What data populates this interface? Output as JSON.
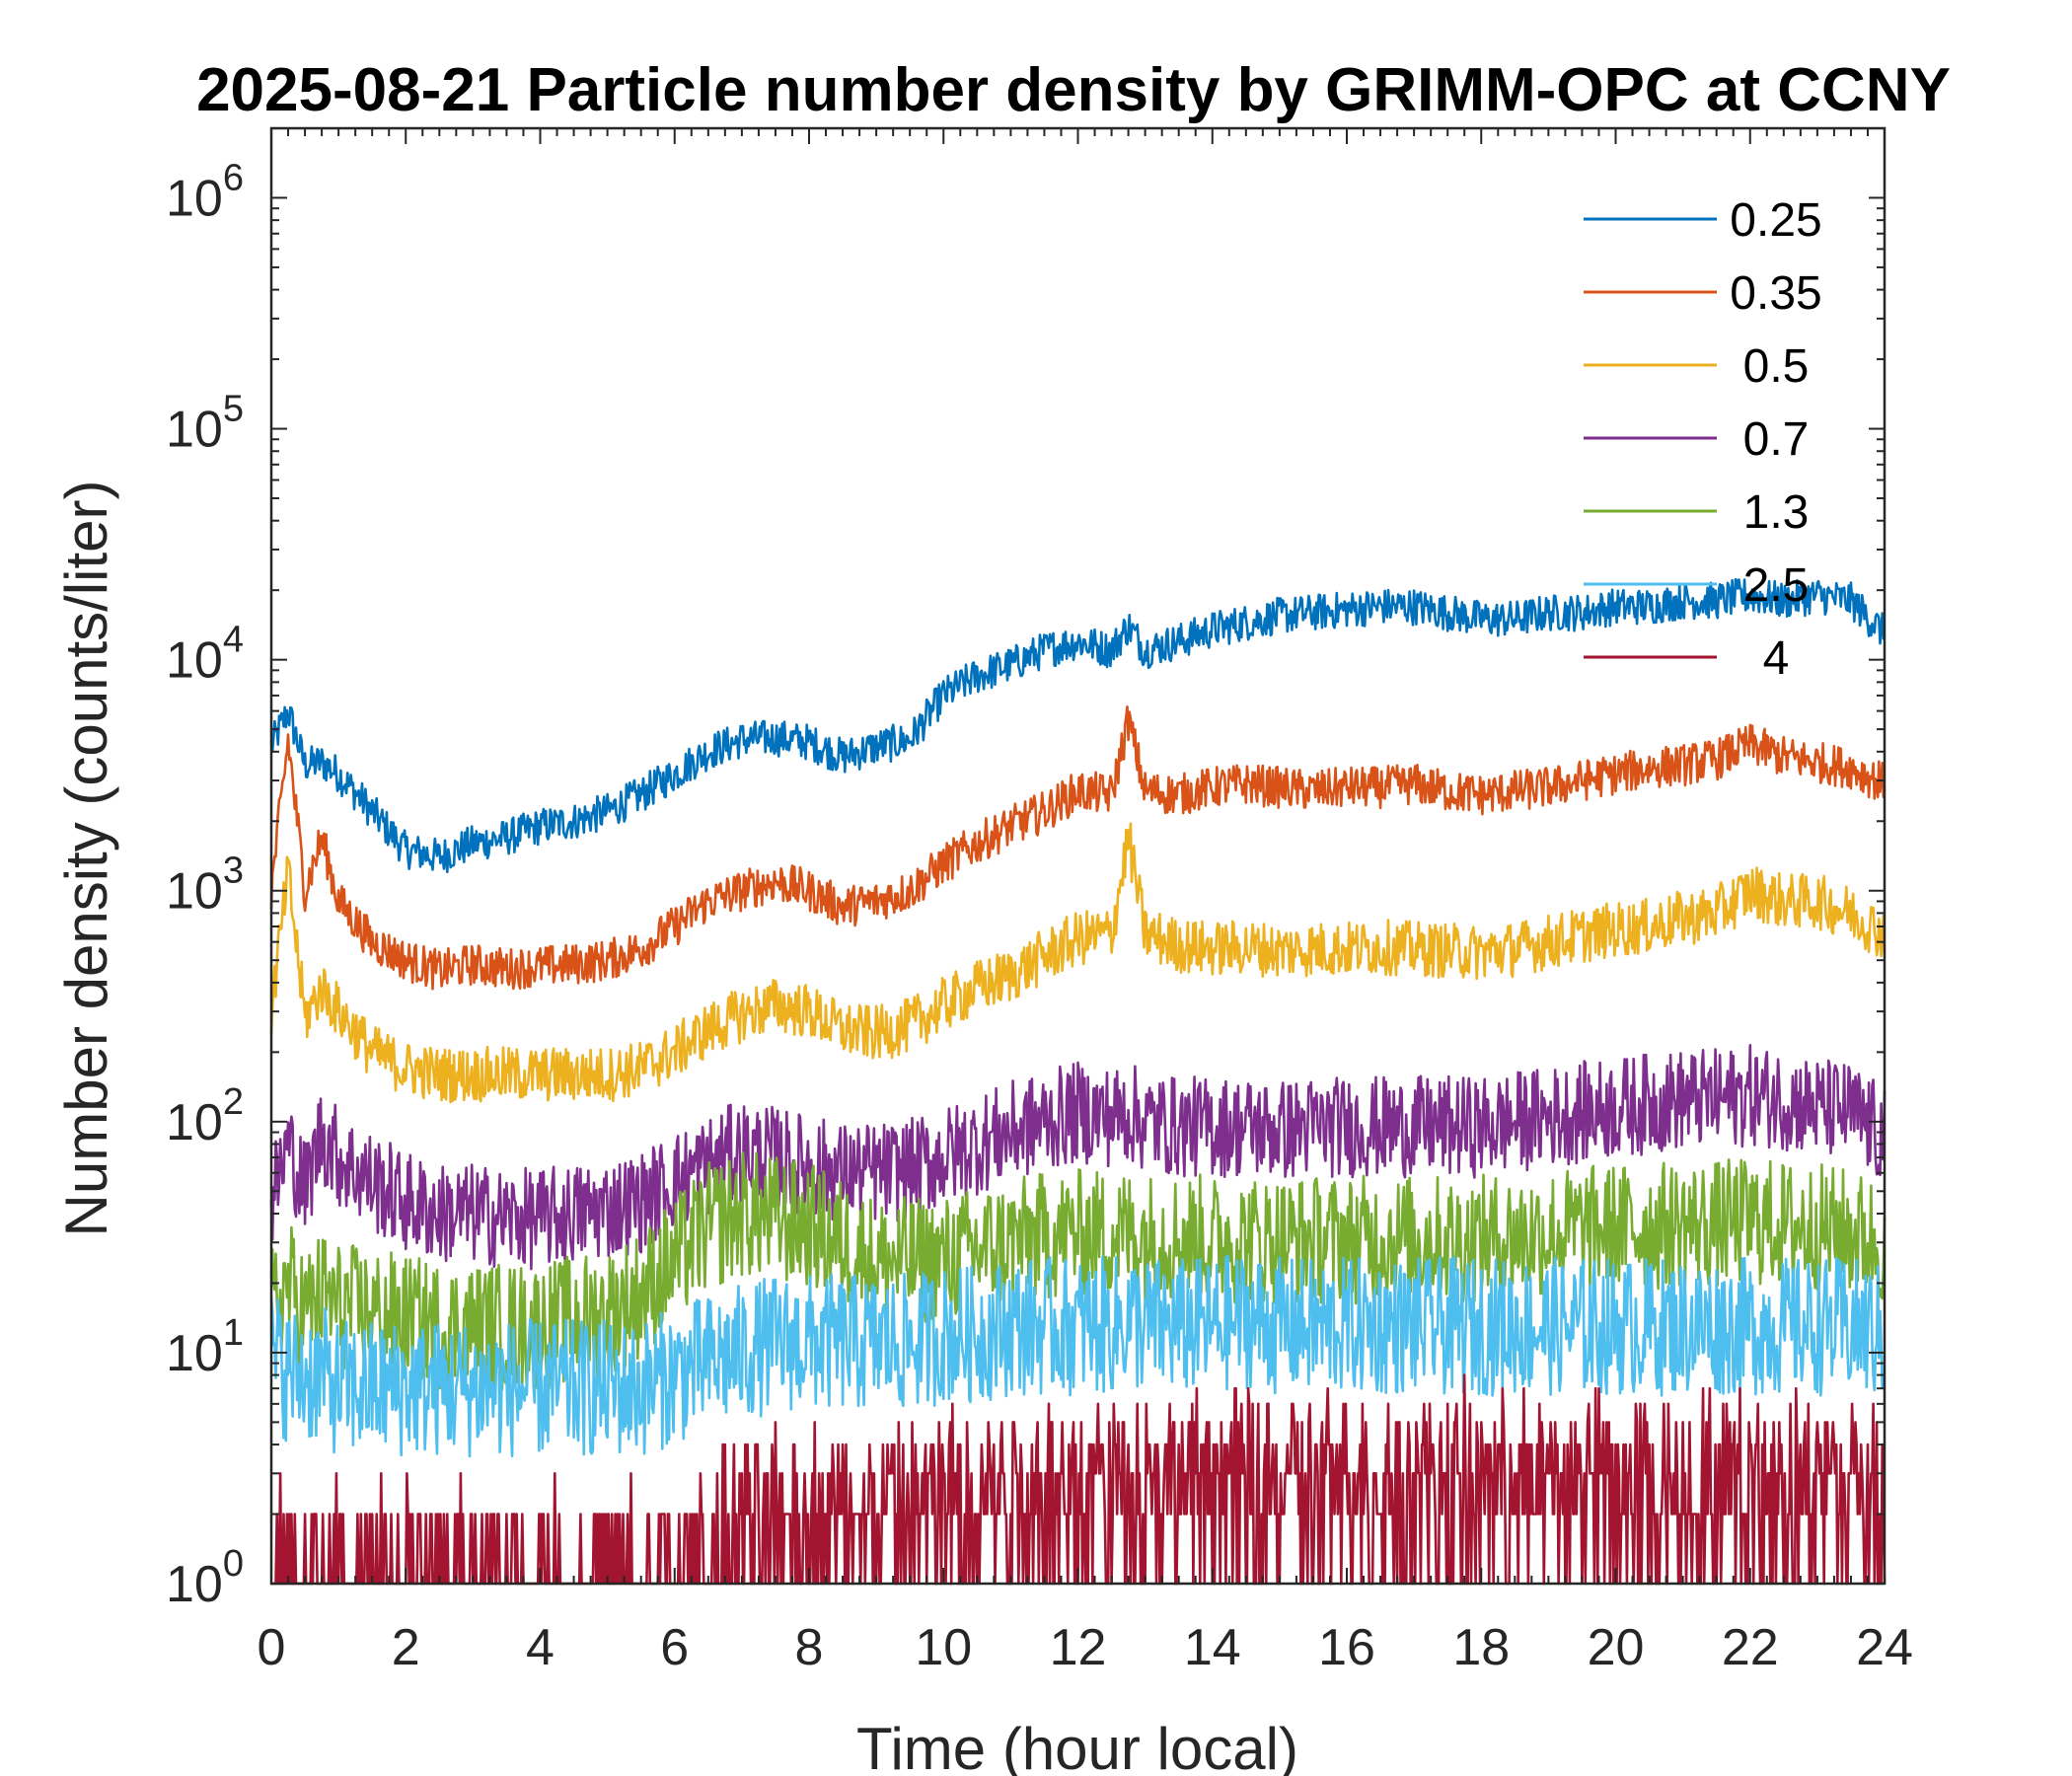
{
  "chart_data": {
    "type": "line",
    "title": "2025-08-21 Particle number density by GRIMM-OPC at CCNY",
    "xlabel": "Time (hour local)",
    "ylabel": "Number density (counts/liter)",
    "x_scale": "linear",
    "y_scale": "log",
    "xlim": [
      0,
      24
    ],
    "ylim": [
      1,
      2000000
    ],
    "x_ticks": [
      0,
      2,
      4,
      6,
      8,
      10,
      12,
      14,
      16,
      18,
      20,
      22,
      24
    ],
    "x_tick_labels": [
      "0",
      "2",
      "4",
      "6",
      "8",
      "10",
      "12",
      "14",
      "16",
      "18",
      "20",
      "22",
      "24"
    ],
    "y_ticks": [
      1,
      10,
      100,
      1000,
      10000,
      100000,
      1000000
    ],
    "y_tick_labels": [
      {
        "base": "10",
        "exp": "0"
      },
      {
        "base": "10",
        "exp": "1"
      },
      {
        "base": "10",
        "exp": "2"
      },
      {
        "base": "10",
        "exp": "3"
      },
      {
        "base": "10",
        "exp": "4"
      },
      {
        "base": "10",
        "exp": "5"
      },
      {
        "base": "10",
        "exp": "6"
      }
    ],
    "grid": false,
    "legend_position": "top-right",
    "x": [
      0,
      0.25,
      0.5,
      0.75,
      1,
      1.5,
      2,
      2.5,
      3,
      3.5,
      4,
      4.5,
      5,
      5.5,
      6,
      6.5,
      7,
      7.5,
      8,
      8.5,
      9,
      9.5,
      10,
      10.5,
      11,
      11.5,
      12,
      12.5,
      12.75,
      13,
      13.5,
      14,
      14.5,
      15,
      15.5,
      16,
      16.5,
      17,
      17.5,
      18,
      18.5,
      19,
      19.5,
      20,
      20.5,
      21,
      21.5,
      22,
      22.5,
      23,
      23.5,
      24
    ],
    "series": [
      {
        "name": "0.25",
        "color": "#0072BD",
        "noise": 0.08,
        "values": [
          4200,
          6000,
          3500,
          3600,
          3200,
          2200,
          1500,
          1400,
          1600,
          1700,
          1900,
          2000,
          2200,
          2600,
          3200,
          4000,
          4500,
          4600,
          4400,
          3800,
          4200,
          4500,
          7000,
          8500,
          9500,
          11000,
          12000,
          11000,
          14000,
          11000,
          12000,
          13500,
          14500,
          15500,
          16000,
          16500,
          17000,
          17000,
          16000,
          15000,
          15000,
          16000,
          16000,
          17000,
          17000,
          18000,
          18000,
          19000,
          18000,
          19000,
          18000,
          13000
        ]
      },
      {
        "name": "0.35",
        "color": "#D95319",
        "noise": 0.09,
        "values": [
          1000,
          4500,
          1000,
          1700,
          900,
          600,
          500,
          450,
          480,
          460,
          470,
          480,
          500,
          560,
          700,
          900,
          1000,
          1100,
          1000,
          850,
          900,
          1000,
          1300,
          1600,
          1900,
          2200,
          2700,
          2600,
          5500,
          2700,
          2600,
          2800,
          2900,
          2800,
          2700,
          2800,
          2800,
          2900,
          2700,
          2600,
          2700,
          2800,
          3000,
          3200,
          3400,
          3500,
          3700,
          4300,
          3800,
          3600,
          3400,
          2900
        ]
      },
      {
        "name": "0.5",
        "color": "#EDB120",
        "noise": 0.12,
        "values": [
          300,
          1200,
          280,
          380,
          300,
          200,
          170,
          160,
          160,
          160,
          160,
          160,
          160,
          170,
          200,
          250,
          290,
          320,
          300,
          250,
          240,
          260,
          320,
          380,
          430,
          520,
          620,
          650,
          1700,
          650,
          580,
          560,
          570,
          550,
          560,
          560,
          570,
          560,
          550,
          540,
          560,
          600,
          640,
          680,
          700,
          760,
          800,
          1000,
          900,
          900,
          800,
          650
        ]
      },
      {
        "name": "0.7",
        "color": "#7E2F8E",
        "noise": 0.22,
        "values": [
          45,
          80,
          50,
          90,
          70,
          55,
          45,
          40,
          40,
          38,
          38,
          40,
          42,
          45,
          55,
          65,
          75,
          70,
          65,
          60,
          60,
          62,
          70,
          80,
          90,
          100,
          110,
          105,
          110,
          100,
          95,
          95,
          95,
          92,
          95,
          95,
          95,
          95,
          95,
          95,
          100,
          105,
          110,
          115,
          120,
          125,
          125,
          130,
          125,
          115,
          110,
          85
        ]
      },
      {
        "name": "1.3",
        "color": "#77AC30",
        "noise": 0.28,
        "values": [
          15,
          20,
          15,
          18,
          16,
          15,
          14,
          13,
          13,
          13,
          13,
          14,
          15,
          18,
          25,
          35,
          40,
          38,
          35,
          30,
          25,
          25,
          25,
          28,
          30,
          32,
          33,
          33,
          33,
          32,
          32,
          31,
          31,
          31,
          31,
          31,
          31,
          31,
          31,
          31,
          32,
          33,
          34,
          35,
          35,
          36,
          36,
          37,
          36,
          35,
          33,
          30
        ]
      },
      {
        "name": "2.5",
        "color": "#4DBEEE",
        "noise": 0.3,
        "values": [
          10,
          8,
          8,
          8,
          7,
          7,
          7,
          7,
          7,
          7,
          7,
          7,
          7,
          7,
          8,
          9,
          10,
          11,
          11,
          11,
          11,
          11,
          12,
          12,
          13,
          13,
          13,
          13,
          14,
          13,
          13,
          13,
          14,
          13,
          13,
          13,
          13,
          13,
          13,
          13,
          13,
          13,
          13,
          13,
          13,
          13,
          13,
          13,
          13,
          13,
          13,
          12
        ]
      },
      {
        "name": "4",
        "color": "#A2142F",
        "noise": 0.35,
        "values": [
          1,
          1,
          1,
          1,
          1,
          1,
          1,
          1,
          1,
          1,
          1,
          1,
          1,
          1,
          1,
          1.2,
          1.6,
          1.8,
          1.8,
          1.8,
          1.8,
          1.9,
          2.2,
          2.4,
          2.5,
          2.5,
          2.6,
          2.6,
          2.6,
          2.6,
          2.6,
          2.6,
          2.7,
          2.6,
          2.6,
          2.6,
          2.6,
          2.6,
          2.6,
          2.6,
          2.6,
          2.6,
          2.6,
          2.6,
          2.6,
          2.6,
          2.6,
          2.6,
          2.6,
          2.6,
          2.6,
          2.6
        ]
      }
    ]
  }
}
